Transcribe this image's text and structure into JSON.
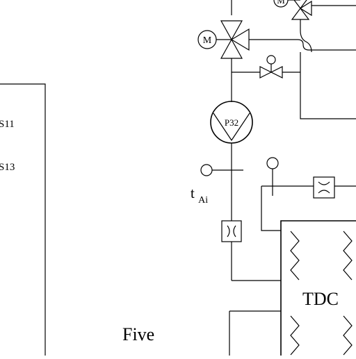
{
  "labels": {
    "s11": "S11",
    "s13": "S13",
    "pump": "P32",
    "motor_upper": "M",
    "motor_lower": "M",
    "temp_sensor_main": "t",
    "temp_sensor_sub": "Ai",
    "tdc": "TDC",
    "five": "Five"
  }
}
